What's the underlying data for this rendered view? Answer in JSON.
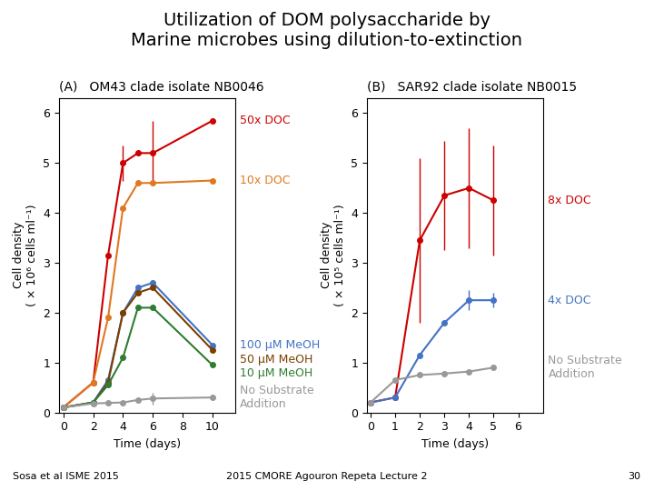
{
  "title": "Utilization of DOM polysaccharide by\nMarine microbes using dilution-to-extinction",
  "annotations": [
    "Sosa et al ISME 2015",
    "2015 CMORE Agouron Repeta Lecture 2",
    "30"
  ],
  "chart_data": [
    {
      "type": "line",
      "title": "(A)   OM43 clade isolate NB0046",
      "x_label": "Time (days)",
      "y_label": "Cell density\n( × 10⁶ cells ml⁻¹)",
      "xlim": [
        -0.3,
        11.5
      ],
      "ylim": [
        0,
        6.3
      ],
      "xticks": [
        0,
        2,
        4,
        6,
        8,
        10
      ],
      "yticks": [
        0,
        1,
        2,
        3,
        4,
        5,
        6
      ],
      "series": [
        {
          "name": "50x DOC",
          "color": "#cc0000",
          "marker": "o",
          "x": [
            0,
            2,
            3,
            4,
            5,
            6,
            10
          ],
          "values": [
            0.1,
            0.6,
            3.15,
            5.0,
            5.2,
            5.2,
            5.85
          ],
          "errors": [
            0,
            0,
            0,
            0.35,
            0,
            0.65,
            0
          ]
        },
        {
          "name": "10x DOC",
          "color": "#e07820",
          "marker": "o",
          "x": [
            0,
            2,
            3,
            4,
            5,
            6,
            10
          ],
          "values": [
            0.1,
            0.6,
            1.9,
            4.1,
            4.6,
            4.6,
            4.65
          ],
          "errors": [
            0,
            0,
            0,
            0,
            0,
            0,
            0
          ]
        },
        {
          "name": "100 μM MeOH",
          "color": "#4472c4",
          "marker": "o",
          "x": [
            0,
            2,
            3,
            4,
            5,
            6,
            10
          ],
          "values": [
            0.1,
            0.2,
            0.65,
            2.0,
            2.5,
            2.6,
            1.35
          ],
          "errors": [
            0,
            0,
            0,
            0,
            0,
            0,
            0
          ]
        },
        {
          "name": "50 μM MeOH",
          "color": "#7b3f00",
          "marker": "o",
          "x": [
            0,
            2,
            3,
            4,
            5,
            6,
            10
          ],
          "values": [
            0.1,
            0.2,
            0.6,
            2.0,
            2.4,
            2.5,
            1.25
          ],
          "errors": [
            0,
            0,
            0,
            0,
            0,
            0,
            0
          ]
        },
        {
          "name": "10 μM MeOH",
          "color": "#2e7d32",
          "marker": "o",
          "x": [
            0,
            2,
            3,
            4,
            5,
            6,
            10
          ],
          "values": [
            0.1,
            0.2,
            0.55,
            1.1,
            2.1,
            2.1,
            0.95
          ],
          "errors": [
            0,
            0,
            0,
            0,
            0,
            0,
            0
          ]
        },
        {
          "name": "No Substrate\nAddition",
          "color": "#999999",
          "marker": "o",
          "x": [
            0,
            2,
            3,
            4,
            5,
            6,
            10
          ],
          "values": [
            0.1,
            0.18,
            0.19,
            0.2,
            0.25,
            0.28,
            0.3
          ],
          "errors": [
            0,
            0,
            0,
            0,
            0,
            0.12,
            0
          ]
        }
      ]
    },
    {
      "type": "line",
      "title": "(B)   SAR92 clade isolate NB0015",
      "x_label": "Time (days)",
      "y_label": "Cell density\n( × 10⁵ cells ml⁻¹)",
      "xlim": [
        -0.15,
        7.0
      ],
      "ylim": [
        0,
        6.3
      ],
      "xticks": [
        0,
        1,
        2,
        3,
        4,
        5,
        6
      ],
      "yticks": [
        0,
        1,
        2,
        3,
        4,
        5,
        6
      ],
      "series": [
        {
          "name": "8x DOC",
          "color": "#cc0000",
          "marker": "o",
          "x": [
            0,
            1,
            2,
            3,
            4,
            5
          ],
          "values": [
            0.2,
            0.3,
            3.45,
            4.35,
            4.5,
            4.25
          ],
          "errors": [
            0,
            0,
            1.65,
            1.1,
            1.2,
            1.1
          ]
        },
        {
          "name": "4x DOC",
          "color": "#4472c4",
          "marker": "o",
          "x": [
            0,
            1,
            2,
            3,
            4,
            5
          ],
          "values": [
            0.2,
            0.3,
            1.15,
            1.8,
            2.25,
            2.25
          ],
          "errors": [
            0,
            0,
            0,
            0,
            0.2,
            0.15
          ]
        },
        {
          "name": "No Substrate\nAddition",
          "color": "#999999",
          "marker": "o",
          "x": [
            0,
            1,
            2,
            3,
            4,
            5
          ],
          "values": [
            0.2,
            0.65,
            0.75,
            0.78,
            0.82,
            0.9
          ],
          "errors": [
            0,
            0,
            0,
            0,
            0,
            0
          ]
        }
      ]
    }
  ]
}
